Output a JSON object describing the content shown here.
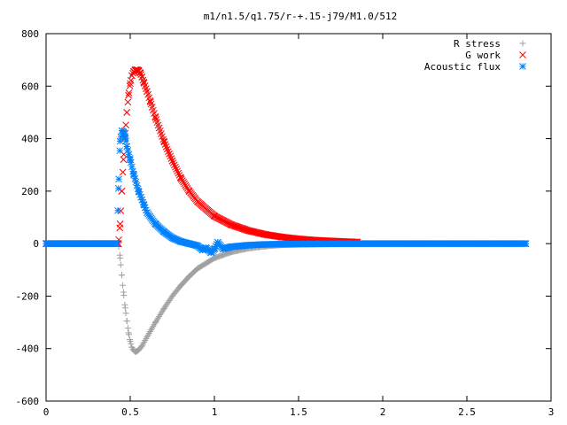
{
  "chart_data": {
    "type": "scatter",
    "title": "m1/n1.5/q1.75/r-+.15-j79/M1.0/512",
    "xlabel": "",
    "ylabel": "",
    "xlim": [
      0,
      3
    ],
    "ylim": [
      -600,
      800
    ],
    "xticks": [
      0,
      0.5,
      1,
      1.5,
      2,
      2.5,
      3
    ],
    "yticks": [
      -600,
      -400,
      -200,
      0,
      200,
      400,
      600,
      800
    ],
    "xtick_labels": [
      "0",
      "0.5",
      "1",
      "1.5",
      "2",
      "2.5",
      "3"
    ],
    "ytick_labels": [
      "-600",
      "-400",
      "-200",
      "0",
      "200",
      "400",
      "600",
      "800"
    ],
    "grid": false,
    "legend_position": "top-right",
    "series": [
      {
        "name": "R stress",
        "marker": "plus",
        "color": "#a0a0a0",
        "x": [
          0,
          0.1,
          0.2,
          0.3,
          0.4,
          0.43,
          0.44,
          0.45,
          0.46,
          0.47,
          0.48,
          0.49,
          0.5,
          0.51,
          0.52,
          0.53,
          0.54,
          0.55,
          0.57,
          0.6,
          0.65,
          0.7,
          0.75,
          0.8,
          0.85,
          0.9,
          1.0,
          1.1,
          1.2,
          1.3,
          1.4,
          1.5,
          1.6,
          1.8,
          2.0,
          2.2,
          2.4,
          2.6,
          2.85
        ],
        "y": [
          0,
          0,
          0,
          0,
          0,
          0,
          -55,
          -120,
          -185,
          -245,
          -295,
          -340,
          -372,
          -395,
          -407,
          -412,
          -410,
          -405,
          -390,
          -355,
          -300,
          -248,
          -200,
          -160,
          -125,
          -95,
          -55,
          -32,
          -18,
          -10,
          -5,
          -3,
          -2,
          -1,
          0,
          0,
          0,
          0,
          0
        ]
      },
      {
        "name": "G work",
        "marker": "cross",
        "color": "#ff0000",
        "x": [
          0,
          0.1,
          0.2,
          0.3,
          0.4,
          0.43,
          0.44,
          0.45,
          0.46,
          0.47,
          0.48,
          0.49,
          0.5,
          0.51,
          0.52,
          0.53,
          0.54,
          0.55,
          0.56,
          0.57,
          0.58,
          0.6,
          0.62,
          0.65,
          0.7,
          0.75,
          0.8,
          0.85,
          0.9,
          1.0,
          1.1,
          1.2,
          1.3,
          1.4,
          1.5,
          1.6,
          1.7,
          1.8,
          1.85
        ],
        "y": [
          0,
          0,
          0,
          0,
          0,
          0,
          75,
          200,
          320,
          420,
          500,
          565,
          610,
          640,
          655,
          662,
          662,
          660,
          650,
          635,
          615,
          580,
          540,
          480,
          390,
          315,
          250,
          200,
          160,
          105,
          72,
          50,
          35,
          25,
          18,
          13,
          10,
          7,
          6
        ]
      },
      {
        "name": "Acoustic flux",
        "marker": "star",
        "color": "#0080ff",
        "x": [
          0,
          0.1,
          0.2,
          0.3,
          0.4,
          0.42,
          0.43,
          0.44,
          0.45,
          0.46,
          0.47,
          0.48,
          0.5,
          0.52,
          0.55,
          0.58,
          0.6,
          0.65,
          0.7,
          0.75,
          0.8,
          0.85,
          0.9,
          0.93,
          0.95,
          0.98,
          1.0,
          1.02,
          1.05,
          1.1,
          1.2,
          1.3,
          1.4,
          1.6,
          1.8,
          2.0,
          2.2,
          2.4,
          2.6,
          2.85
        ],
        "y": [
          0,
          0,
          0,
          0,
          0,
          0,
          210,
          390,
          430,
          425,
          405,
          370,
          320,
          265,
          200,
          150,
          118,
          75,
          45,
          22,
          8,
          0,
          -8,
          -25,
          -15,
          -35,
          -20,
          5,
          -20,
          -12,
          -6,
          -3,
          -2,
          -1,
          0,
          0,
          0,
          0,
          0,
          0
        ]
      }
    ]
  }
}
